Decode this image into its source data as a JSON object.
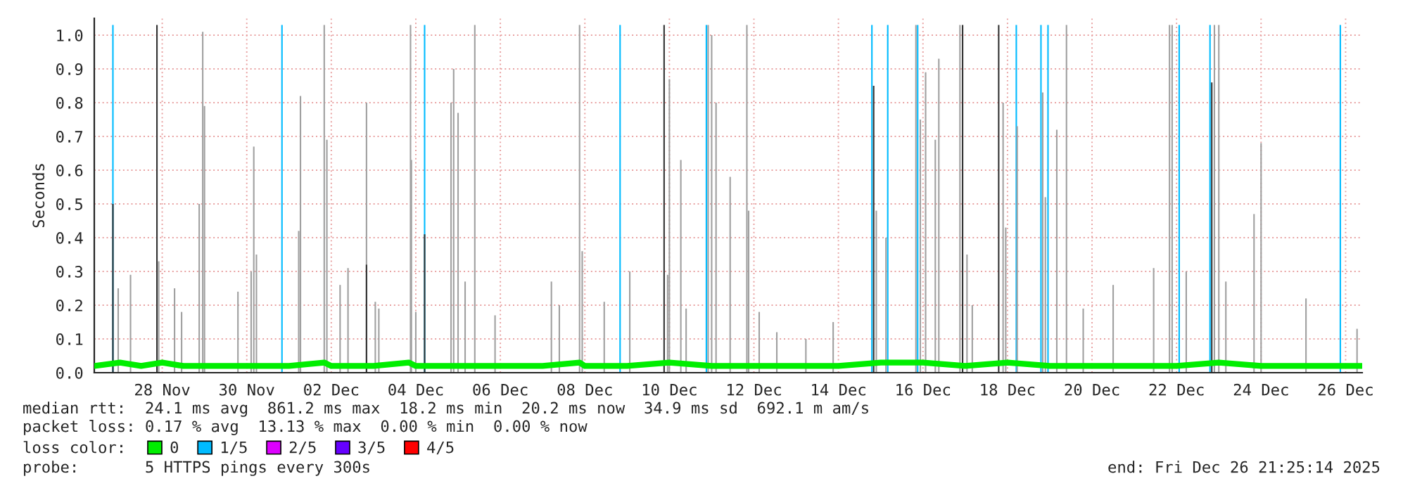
{
  "chart_data": {
    "type": "bar",
    "ylabel": "Seconds",
    "xlim": [
      "2025-11-26T21:25",
      "2025-12-26T21:25"
    ],
    "xticks": [
      {
        "value": "2025-11-28T12:00",
        "label": "28 Nov"
      },
      {
        "value": "2025-11-30T12:00",
        "label": "30 Nov"
      },
      {
        "value": "2025-12-02T12:00",
        "label": "02 Dec"
      },
      {
        "value": "2025-12-04T12:00",
        "label": "04 Dec"
      },
      {
        "value": "2025-12-06T12:00",
        "label": "06 Dec"
      },
      {
        "value": "2025-12-08T12:00",
        "label": "08 Dec"
      },
      {
        "value": "2025-12-10T12:00",
        "label": "10 Dec"
      },
      {
        "value": "2025-12-12T12:00",
        "label": "12 Dec"
      },
      {
        "value": "2025-12-14T12:00",
        "label": "14 Dec"
      },
      {
        "value": "2025-12-16T12:00",
        "label": "16 Dec"
      },
      {
        "value": "2025-12-18T12:00",
        "label": "18 Dec"
      },
      {
        "value": "2025-12-20T12:00",
        "label": "20 Dec"
      },
      {
        "value": "2025-12-22T12:00",
        "label": "22 Dec"
      },
      {
        "value": "2025-12-24T12:00",
        "label": "24 Dec"
      },
      {
        "value": "2025-12-26T12:00",
        "label": "26 Dec"
      }
    ],
    "ylim": [
      0,
      1.05
    ],
    "yticks": [
      {
        "value": 0,
        "label": "0.0"
      },
      {
        "value": 0.1,
        "label": "0.1"
      },
      {
        "value": 0.2,
        "label": "0.2"
      },
      {
        "value": 0.3,
        "label": "0.3"
      },
      {
        "value": 0.4,
        "label": "0.4"
      },
      {
        "value": 0.5,
        "label": "0.5"
      },
      {
        "value": 0.6,
        "label": "0.6"
      },
      {
        "value": 0.7,
        "label": "0.7"
      },
      {
        "value": 0.8,
        "label": "0.8"
      },
      {
        "value": 0.9,
        "label": "0.9"
      },
      {
        "value": 1.0,
        "label": "1.0"
      }
    ],
    "grid": true,
    "legend": "bottom",
    "legend_title": "loss color:",
    "series": [
      {
        "name": "1/5",
        "color": "#00bbff",
        "x": [
          "2025-11-27T08:00",
          "2025-12-01T08:00",
          "2025-12-04T17:00",
          "2025-12-09T08:00",
          "2025-12-11T09:00",
          "2025-12-15T07:00",
          "2025-12-15T16:00",
          "2025-12-16T09:00",
          "2025-12-18T17:00",
          "2025-12-19T07:00",
          "2025-12-19T11:00",
          "2025-12-22T13:30",
          "2025-12-23T07:00",
          "2025-12-26T09:00"
        ],
        "values": [
          1.03,
          1.03,
          1.03,
          1.03,
          1.03,
          1.03,
          1.03,
          1.03,
          1.03,
          1.03,
          1.03,
          1.03,
          1.03,
          1.03
        ]
      },
      {
        "color": "#a0a0a0",
        "x": [
          "2025-11-27T11:00",
          "2025-11-27T18:00",
          "2025-11-28T10:00",
          "2025-11-28T19:00",
          "2025-11-28T23:00",
          "2025-11-29T09:00",
          "2025-11-29T11:00",
          "2025-11-29T12:00",
          "2025-11-30T07:00",
          "2025-11-30T14:30",
          "2025-11-30T16:00",
          "2025-11-30T17:30",
          "2025-12-01T17:30",
          "2025-12-01T18:30",
          "2025-12-02T08:00",
          "2025-12-02T09:30",
          "2025-12-02T17:00",
          "2025-12-02T21:30",
          "2025-12-03T08:00",
          "2025-12-03T13:00",
          "2025-12-03T15:00",
          "2025-12-04T09:00",
          "2025-12-04T09:30",
          "2025-12-04T12:00",
          "2025-12-05T08:00",
          "2025-12-05T09:30",
          "2025-12-05T12:00",
          "2025-12-05T16:00",
          "2025-12-05T21:30",
          "2025-12-06T09:00",
          "2025-12-07T17:00",
          "2025-12-07T21:30",
          "2025-12-08T09:00",
          "2025-12-08T10:30",
          "2025-12-08T23:00",
          "2025-12-09T13:30",
          "2025-12-10T11:00",
          "2025-12-10T12:00",
          "2025-12-10T18:30",
          "2025-12-10T21:30",
          "2025-12-11T10:00",
          "2025-12-11T12:00",
          "2025-12-11T14:30",
          "2025-12-11T22:30",
          "2025-12-12T08:00",
          "2025-12-12T09:00",
          "2025-12-12T15:00",
          "2025-12-13T01:00",
          "2025-12-13T17:30",
          "2025-12-14T09:00",
          "2025-12-15T09:30",
          "2025-12-15T15:00",
          "2025-12-16T08:00",
          "2025-12-16T10:30",
          "2025-12-16T13:30",
          "2025-12-16T19:00",
          "2025-12-16T21:00",
          "2025-12-17T09:00",
          "2025-12-17T13:00",
          "2025-12-17T16:00",
          "2025-12-18T09:30",
          "2025-12-18T11:00",
          "2025-12-18T17:30",
          "2025-12-19T08:00",
          "2025-12-19T09:30",
          "2025-12-19T16:00",
          "2025-12-19T21:30",
          "2025-12-20T07:00",
          "2025-12-21T00:00",
          "2025-12-21T23:00",
          "2025-12-22T08:00",
          "2025-12-22T09:30",
          "2025-12-22T17:30",
          "2025-12-23T09:30",
          "2025-12-23T12:00",
          "2025-12-23T16:00",
          "2025-12-24T08:00",
          "2025-12-24T12:00",
          "2025-12-25T13:30",
          "2025-12-26T18:30"
        ],
        "values": [
          0.25,
          0.29,
          0.33,
          0.25,
          0.18,
          0.5,
          1.01,
          0.79,
          0.24,
          0.3,
          0.67,
          0.35,
          0.42,
          0.82,
          1.03,
          0.69,
          0.26,
          0.31,
          0.8,
          0.21,
          0.19,
          1.03,
          0.63,
          0.18,
          0.8,
          0.9,
          0.77,
          0.27,
          1.03,
          0.17,
          0.27,
          0.2,
          1.03,
          0.36,
          0.21,
          0.3,
          0.29,
          0.87,
          0.63,
          0.19,
          1.03,
          1.0,
          0.8,
          0.58,
          1.03,
          0.48,
          0.18,
          0.12,
          0.1,
          0.15,
          0.48,
          0.4,
          1.03,
          0.75,
          0.89,
          0.69,
          0.93,
          1.03,
          0.35,
          0.2,
          0.8,
          0.43,
          0.73,
          0.83,
          0.52,
          0.72,
          1.03,
          0.19,
          0.26,
          0.31,
          1.03,
          1.03,
          0.3,
          1.03,
          1.03,
          0.27,
          0.47,
          0.68,
          0.22,
          0.13
        ]
      },
      {
        "color": "#333333",
        "x": [
          "2025-11-27T08:00",
          "2025-11-28T09:00",
          "2025-12-03T08:00",
          "2025-12-04T17:00",
          "2025-12-10T09:00",
          "2025-12-15T08:00",
          "2025-12-17T10:30",
          "2025-12-18T07:00",
          "2025-12-23T08:00"
        ],
        "values": [
          0.5,
          1.03,
          0.32,
          0.41,
          1.03,
          0.85,
          1.03,
          1.03,
          0.86
        ]
      },
      {
        "name": "0",
        "type": "line",
        "color": "#00ee00",
        "x": [
          "2025-11-26T21:25",
          "2025-11-27T12:00",
          "2025-11-28T00:00",
          "2025-11-28T12:00",
          "2025-11-29T00:00",
          "2025-11-29T12:00",
          "2025-11-30T12:00",
          "2025-12-01T12:00",
          "2025-12-02T08:00",
          "2025-12-02T12:00",
          "2025-12-03T12:00",
          "2025-12-04T08:00",
          "2025-12-04T12:00",
          "2025-12-05T12:00",
          "2025-12-06T12:00",
          "2025-12-07T12:00",
          "2025-12-08T09:00",
          "2025-12-08T12:00",
          "2025-12-09T12:00",
          "2025-12-10T12:00",
          "2025-12-11T12:00",
          "2025-12-12T12:00",
          "2025-12-13T12:00",
          "2025-12-14T12:00",
          "2025-12-15T12:00",
          "2025-12-16T12:00",
          "2025-12-17T12:00",
          "2025-12-18T12:00",
          "2025-12-19T12:00",
          "2025-12-20T12:00",
          "2025-12-21T12:00",
          "2025-12-22T12:00",
          "2025-12-23T12:00",
          "2025-12-24T12:00",
          "2025-12-25T12:00",
          "2025-12-26T21:25"
        ],
        "values": [
          0.02,
          0.03,
          0.02,
          0.03,
          0.02,
          0.02,
          0.02,
          0.02,
          0.03,
          0.02,
          0.02,
          0.03,
          0.02,
          0.02,
          0.02,
          0.02,
          0.03,
          0.02,
          0.02,
          0.03,
          0.02,
          0.02,
          0.02,
          0.02,
          0.03,
          0.03,
          0.02,
          0.03,
          0.02,
          0.02,
          0.02,
          0.02,
          0.03,
          0.02,
          0.02,
          0.02
        ]
      },
      {
        "name": "2/5",
        "type": "line",
        "color": "#dd00ff"
      },
      {
        "name": "3/5",
        "type": "line",
        "color": "#6600ff"
      },
      {
        "name": "4/5",
        "type": "line",
        "color": "#ff0000"
      }
    ],
    "annotations": [
      "median rtt:  24.1 ms avg  861.2 ms max  18.2 ms min  20.2 ms now  34.9 ms sd  692.1 m am/s",
      "packet loss: 0.17 % avg  13.13 % max  0.00 % min  0.00 % now",
      "probe:       5 HTTPS pings every 300s",
      "end: Fri Dec 26 21:25:14 2025"
    ]
  }
}
